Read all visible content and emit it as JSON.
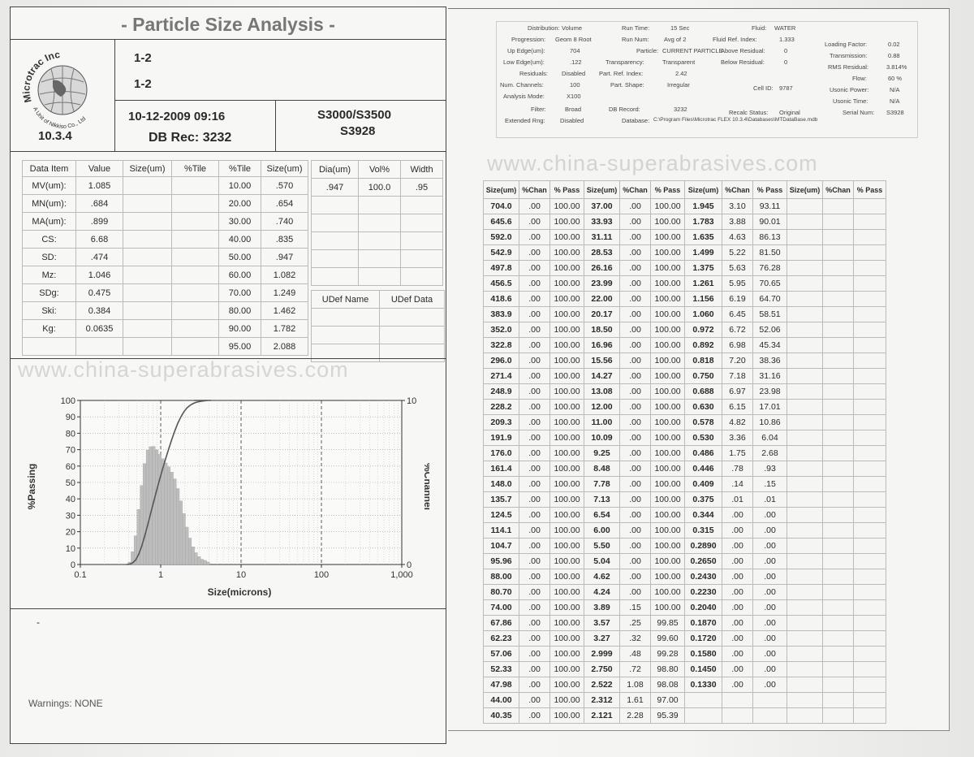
{
  "title": "- Particle Size Analysis -",
  "logo_text": "Microtrac Inc.",
  "logo_sub": "A Unit of Nikkiso Co., Ltd",
  "version": "10.3.4",
  "sample_id1": "1-2",
  "sample_id2": "1-2",
  "datetime": "10-12-2009  09:16",
  "db_rec_label": "DB Rec:",
  "db_rec": "3232",
  "serial1": "S3000/S3500",
  "serial2": "S3928",
  "watermark": "www.china-superabrasives.com",
  "warnings": "Warnings: NONE",
  "dash": "-",
  "data_headers": [
    "Data Item",
    "Value",
    "Size(um)",
    "%Tile",
    "%Tile",
    "Size(um)"
  ],
  "data_rows": [
    {
      "item": "MV(um):",
      "value": "1.085",
      "tile": "10.00",
      "size": ".570"
    },
    {
      "item": "MN(um):",
      "value": ".684",
      "tile": "20.00",
      "size": ".654"
    },
    {
      "item": "MA(um):",
      "value": ".899",
      "tile": "30.00",
      "size": ".740"
    },
    {
      "item": "CS:",
      "value": "6.68",
      "tile": "40.00",
      "size": ".835"
    },
    {
      "item": "SD:",
      "value": ".474",
      "tile": "50.00",
      "size": ".947"
    },
    {
      "item": "Mz:",
      "value": "1.046",
      "tile": "60.00",
      "size": "1.082"
    },
    {
      "item": "SDg:",
      "value": "0.475",
      "tile": "70.00",
      "size": "1.249"
    },
    {
      "item": "Ski:",
      "value": "0.384",
      "tile": "80.00",
      "size": "1.462"
    },
    {
      "item": "Kg:",
      "value": "0.0635",
      "tile": "90.00",
      "size": "1.782"
    },
    {
      "item": "",
      "value": "",
      "tile": "95.00",
      "size": "2.088"
    }
  ],
  "vol_headers": [
    "Dia(um)",
    "Vol%",
    "Width"
  ],
  "vol_row": [
    ".947",
    "100.0",
    ".95"
  ],
  "udef_headers": [
    "UDef Name",
    "UDef Data"
  ],
  "chart_labels": {
    "y_left": "%Passing",
    "y_right": "%Channel",
    "x": "Size(microns)",
    "x_ticks": [
      "0.1",
      "1",
      "10",
      "100",
      "1,000"
    ],
    "y_ticks": [
      "100",
      "90",
      "80",
      "70",
      "60",
      "50",
      "40",
      "30",
      "20",
      "10",
      "0"
    ],
    "y2_ticks": [
      "10",
      "0"
    ]
  },
  "info": {
    "distribution_label": "Distribution:",
    "distribution": "Volume",
    "progression_label": "Progression:",
    "progression": "Geom 8 Root",
    "up_edge_label": "Up Edge(um):",
    "up_edge": "704",
    "low_edge_label": "Low Edge(um):",
    "low_edge": ".122",
    "residuals_label": "Residuals:",
    "residuals": "Disabled",
    "num_channels_label": "Num. Channels:",
    "num_channels": "100",
    "analysis_mode_label": "Analysis Mode:",
    "analysis_mode": "X100",
    "filter_label": "Filter:",
    "filter": "Broad",
    "extended_rng_label": "Extended Rng:",
    "extended_rng": "Disabled",
    "run_time_label": "Run Time:",
    "run_time": "15 Sec",
    "run_num_label": "Run Num:",
    "run_num": "Avg of 2",
    "particle_label": "Particle:",
    "particle": "CURRENT PARTICLE",
    "transparency_label": "Transparency:",
    "transparency": "Transparent",
    "part_ref_label": "Part. Ref. Index:",
    "part_ref": "2.42",
    "part_shape_label": "Part. Shape:",
    "part_shape": "Irregular",
    "db_record_label": "DB Record:",
    "db_record": "3232",
    "database_label": "Database:",
    "database": "C:\\Program Files\\Microtrac FLEX 10.3.4\\Databases\\MTDataBase.mdb",
    "fluid_label": "Fluid:",
    "fluid": "WATER",
    "fluid_ref_label": "Fluid Ref. Index:",
    "fluid_ref": "1.333",
    "above_res_label": "Above Residual:",
    "above_res": "0",
    "below_res_label": "Below Residual:",
    "below_res": "0",
    "cell_id_label": "Cell ID:",
    "cell_id": "9787",
    "recalc_label": "Recalc Status:",
    "recalc": "Original",
    "loading_label": "Loading Factor:",
    "loading": "0.02",
    "transmission_label": "Transmission:",
    "transmission": "0.88",
    "rms_label": "RMS Residual:",
    "rms": "3.814%",
    "flow_label": "Flow:",
    "flow": "60 %",
    "usonic_power_label": "Usonic Power:",
    "usonic_power": "N/A",
    "usonic_time_label": "Usonic Time:",
    "usonic_time": "N/A",
    "serial_num_label": "Serial Num:",
    "serial_num": "S3928"
  },
  "psd_headers": [
    "Size(um)",
    "%Chan",
    "% Pass",
    "Size(um)",
    "%Chan",
    "% Pass",
    "Size(um)",
    "%Chan",
    "% Pass",
    "Size(um)",
    "%Chan",
    "% Pass"
  ],
  "psd_rows": [
    [
      "704.0",
      ".00",
      "100.00",
      "37.00",
      ".00",
      "100.00",
      "1.945",
      "3.10",
      "93.11"
    ],
    [
      "645.6",
      ".00",
      "100.00",
      "33.93",
      ".00",
      "100.00",
      "1.783",
      "3.88",
      "90.01"
    ],
    [
      "592.0",
      ".00",
      "100.00",
      "31.11",
      ".00",
      "100.00",
      "1.635",
      "4.63",
      "86.13"
    ],
    [
      "542.9",
      ".00",
      "100.00",
      "28.53",
      ".00",
      "100.00",
      "1.499",
      "5.22",
      "81.50"
    ],
    [
      "497.8",
      ".00",
      "100.00",
      "26.16",
      ".00",
      "100.00",
      "1.375",
      "5.63",
      "76.28"
    ],
    [
      "456.5",
      ".00",
      "100.00",
      "23.99",
      ".00",
      "100.00",
      "1.261",
      "5.95",
      "70.65"
    ],
    [
      "418.6",
      ".00",
      "100.00",
      "22.00",
      ".00",
      "100.00",
      "1.156",
      "6.19",
      "64.70"
    ],
    [
      "383.9",
      ".00",
      "100.00",
      "20.17",
      ".00",
      "100.00",
      "1.060",
      "6.45",
      "58.51"
    ],
    [
      "352.0",
      ".00",
      "100.00",
      "18.50",
      ".00",
      "100.00",
      "0.972",
      "6.72",
      "52.06"
    ],
    [
      "322.8",
      ".00",
      "100.00",
      "16.96",
      ".00",
      "100.00",
      "0.892",
      "6.98",
      "45.34"
    ],
    [
      "296.0",
      ".00",
      "100.00",
      "15.56",
      ".00",
      "100.00",
      "0.818",
      "7.20",
      "38.36"
    ],
    [
      "271.4",
      ".00",
      "100.00",
      "14.27",
      ".00",
      "100.00",
      "0.750",
      "7.18",
      "31.16"
    ],
    [
      "248.9",
      ".00",
      "100.00",
      "13.08",
      ".00",
      "100.00",
      "0.688",
      "6.97",
      "23.98"
    ],
    [
      "228.2",
      ".00",
      "100.00",
      "12.00",
      ".00",
      "100.00",
      "0.630",
      "6.15",
      "17.01"
    ],
    [
      "209.3",
      ".00",
      "100.00",
      "11.00",
      ".00",
      "100.00",
      "0.578",
      "4.82",
      "10.86"
    ],
    [
      "191.9",
      ".00",
      "100.00",
      "10.09",
      ".00",
      "100.00",
      "0.530",
      "3.36",
      "6.04"
    ],
    [
      "176.0",
      ".00",
      "100.00",
      "9.25",
      ".00",
      "100.00",
      "0.486",
      "1.75",
      "2.68"
    ],
    [
      "161.4",
      ".00",
      "100.00",
      "8.48",
      ".00",
      "100.00",
      "0.446",
      ".78",
      ".93"
    ],
    [
      "148.0",
      ".00",
      "100.00",
      "7.78",
      ".00",
      "100.00",
      "0.409",
      ".14",
      ".15"
    ],
    [
      "135.7",
      ".00",
      "100.00",
      "7.13",
      ".00",
      "100.00",
      "0.375",
      ".01",
      ".01"
    ],
    [
      "124.5",
      ".00",
      "100.00",
      "6.54",
      ".00",
      "100.00",
      "0.344",
      ".00",
      ".00"
    ],
    [
      "114.1",
      ".00",
      "100.00",
      "6.00",
      ".00",
      "100.00",
      "0.315",
      ".00",
      ".00"
    ],
    [
      "104.7",
      ".00",
      "100.00",
      "5.50",
      ".00",
      "100.00",
      "0.2890",
      ".00",
      ".00"
    ],
    [
      "95.96",
      ".00",
      "100.00",
      "5.04",
      ".00",
      "100.00",
      "0.2650",
      ".00",
      ".00"
    ],
    [
      "88.00",
      ".00",
      "100.00",
      "4.62",
      ".00",
      "100.00",
      "0.2430",
      ".00",
      ".00"
    ],
    [
      "80.70",
      ".00",
      "100.00",
      "4.24",
      ".00",
      "100.00",
      "0.2230",
      ".00",
      ".00"
    ],
    [
      "74.00",
      ".00",
      "100.00",
      "3.89",
      ".15",
      "100.00",
      "0.2040",
      ".00",
      ".00"
    ],
    [
      "67.86",
      ".00",
      "100.00",
      "3.57",
      ".25",
      "99.85",
      "0.1870",
      ".00",
      ".00"
    ],
    [
      "62.23",
      ".00",
      "100.00",
      "3.27",
      ".32",
      "99.60",
      "0.1720",
      ".00",
      ".00"
    ],
    [
      "57.06",
      ".00",
      "100.00",
      "2.999",
      ".48",
      "99.28",
      "0.1580",
      ".00",
      ".00"
    ],
    [
      "52.33",
      ".00",
      "100.00",
      "2.750",
      ".72",
      "98.80",
      "0.1450",
      ".00",
      ".00"
    ],
    [
      "47.98",
      ".00",
      "100.00",
      "2.522",
      "1.08",
      "98.08",
      "0.1330",
      ".00",
      ".00"
    ],
    [
      "44.00",
      ".00",
      "100.00",
      "2.312",
      "1.61",
      "97.00",
      "",
      "",
      ""
    ],
    [
      "40.35",
      ".00",
      "100.00",
      "2.121",
      "2.28",
      "95.39",
      "",
      "",
      ""
    ]
  ],
  "chart_data": {
    "type": "area",
    "x_scale": "log",
    "xlabel": "Size(microns)",
    "ylabel": "%Passing",
    "y2label": "%Channel",
    "xlim": [
      0.1,
      1000
    ],
    "ylim": [
      0,
      100
    ],
    "y2lim": [
      0,
      10
    ],
    "x_ticks": [
      0.1,
      1,
      10,
      100,
      1000
    ],
    "channel_x": [
      0.409,
      0.446,
      0.486,
      0.53,
      0.578,
      0.63,
      0.688,
      0.75,
      0.818,
      0.892,
      0.972,
      1.06,
      1.156,
      1.261,
      1.375,
      1.499,
      1.635,
      1.783,
      1.945,
      2.121,
      2.312,
      2.522,
      2.75,
      2.999,
      3.27,
      3.57,
      3.89
    ],
    "channel_values": [
      0.14,
      0.78,
      1.75,
      3.36,
      4.82,
      6.15,
      6.97,
      7.18,
      7.2,
      6.98,
      6.72,
      6.45,
      6.19,
      5.95,
      5.63,
      5.22,
      4.63,
      3.88,
      3.1,
      2.28,
      1.61,
      1.08,
      0.72,
      0.48,
      0.32,
      0.25,
      0.15
    ],
    "passing_x": [
      0.375,
      0.409,
      0.446,
      0.486,
      0.53,
      0.578,
      0.63,
      0.688,
      0.75,
      0.818,
      0.892,
      0.972,
      1.06,
      1.156,
      1.261,
      1.375,
      1.499,
      1.635,
      1.783,
      1.945,
      2.121,
      2.312,
      2.522,
      2.75,
      2.999,
      3.27,
      3.57,
      3.89,
      4.24
    ],
    "passing_values": [
      0.01,
      0.15,
      0.93,
      2.68,
      6.04,
      10.86,
      17.01,
      23.98,
      31.16,
      38.36,
      45.34,
      52.06,
      58.51,
      64.7,
      70.65,
      76.28,
      81.5,
      86.13,
      90.01,
      93.11,
      95.39,
      97.0,
      98.08,
      98.8,
      99.28,
      99.6,
      99.85,
      100,
      100
    ]
  }
}
